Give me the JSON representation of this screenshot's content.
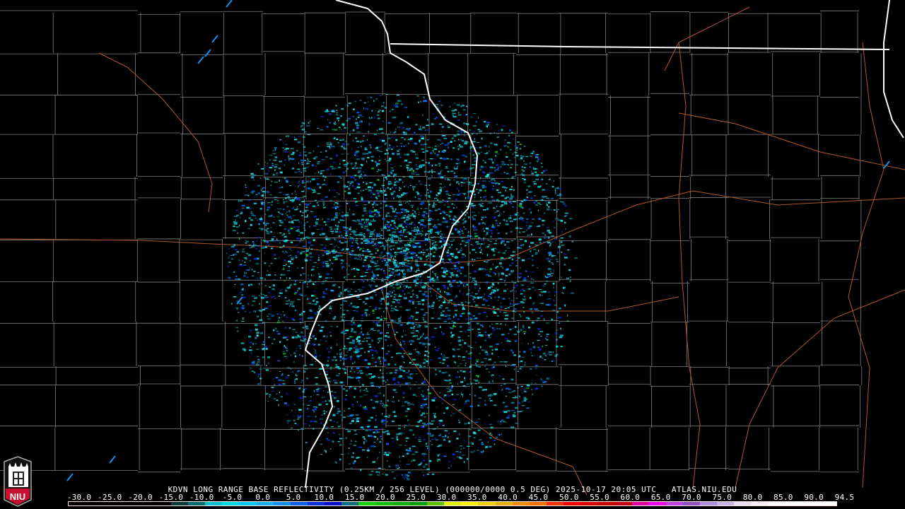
{
  "product": {
    "title": "KDVN LONG RANGE BASE REFLECTIVITY (0.25KM / 256 LEVEL) (000000/0000 0.5 DEG) 2025-10-17 20:05 UTC   ATLAS.NIU.EDU",
    "radar_site": "KDVN",
    "timestamp": "2025-10-17 20:05 UTC",
    "source": "ATLAS.NIU.EDU"
  },
  "logo": {
    "text": "NIU",
    "color": "#c8102e"
  },
  "colorbar": {
    "labels": [
      "-30.0",
      "-25.0",
      "-20.0",
      "-15.0",
      "-10.0",
      "-5.0",
      "0.0",
      "5.0",
      "10.0",
      "15.0",
      "20.0",
      "25.0",
      "30.0",
      "35.0",
      "40.0",
      "45.0",
      "50.0",
      "55.0",
      "60.0",
      "65.0",
      "70.0",
      "75.0",
      "80.0",
      "85.0",
      "90.0",
      "94.5"
    ],
    "colors": [
      "#000000",
      "#000000",
      "#000000",
      "#000000",
      "#000000",
      "#000000",
      "#0a3a3a",
      "#0b6e6e",
      "#00c0d0",
      "#00d8e0",
      "#00c8f0",
      "#10b0f0",
      "#1090f0",
      "#1060f0",
      "#0830e0",
      "#0810d0",
      "#107080",
      "#10d010",
      "#08c008",
      "#10b010",
      "#08a008",
      "#60c000",
      "#e0f000",
      "#f8f000",
      "#f0d000",
      "#e8b000",
      "#f09000",
      "#f87000",
      "#f83000",
      "#f80000",
      "#e00000",
      "#c80000",
      "#c00010",
      "#e000a0",
      "#f000f0",
      "#c040e0",
      "#9050c0",
      "#b090e0",
      "#c8b0e8",
      "#e8e0f0",
      "#f8f0f8",
      "#ffffff",
      "#ffffff",
      "#ffffff",
      "#ffffff"
    ],
    "border_color": "#f0e0d8"
  },
  "map": {
    "state_border_color": "#ffffff",
    "county_line_color": "#808080",
    "road_color": "#b05828",
    "radar_echo_color": "#20d8e0"
  }
}
